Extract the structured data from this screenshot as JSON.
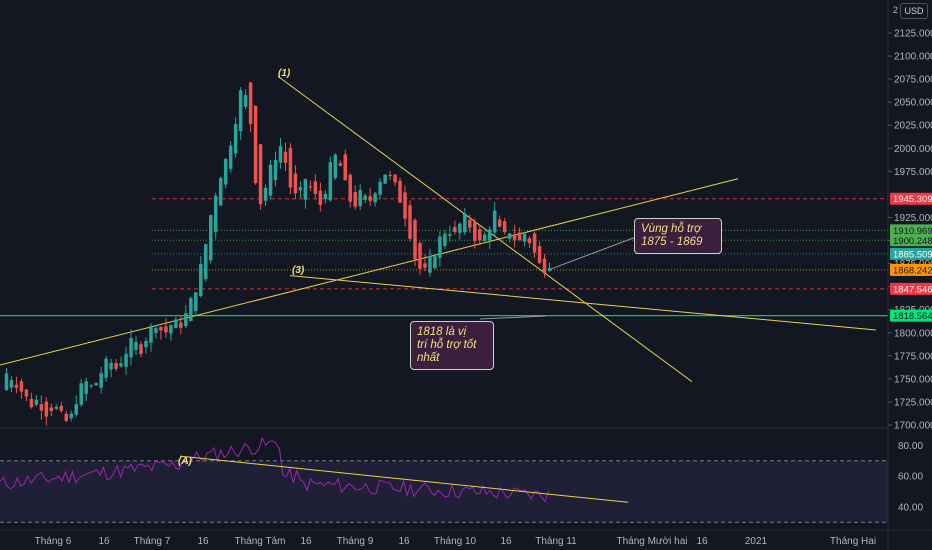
{
  "header": {
    "corner_label": "2",
    "currency": "USD"
  },
  "chart_data": {
    "type": "candlestick",
    "price_axis": {
      "ticks": [
        1700,
        1725,
        1750,
        1775,
        1800,
        1825,
        1850,
        1875,
        1900,
        1925,
        1975,
        2000,
        2025,
        2050,
        2075,
        2100,
        2125
      ],
      "tick_labels": [
        "1700.000",
        "1725.000",
        "1750.000",
        "1775.000",
        "1800.000",
        "1825.000",
        "1850.000",
        "1875.000",
        "1900.000",
        "1925.000",
        "1975.000",
        "2000.000",
        "2025.000",
        "2050.000",
        "2075.000",
        "2100.000",
        "2125.000"
      ],
      "range": [
        1693,
        2148
      ]
    },
    "time_axis": {
      "labels": [
        "Tháng 6",
        "16",
        "Tháng 7",
        "16",
        "Tháng Tám",
        "16",
        "Tháng 9",
        "16",
        "Tháng 10",
        "16",
        "Tháng 11",
        "Tháng Mười hai",
        "16",
        "2021",
        "Tháng Hai"
      ]
    },
    "levels": [
      {
        "price": 1945.309,
        "label": "1945.309",
        "color": "#f23645",
        "style": "dashed"
      },
      {
        "price": 1910.969,
        "label": "1910.969",
        "color": "#4caf50",
        "style": "dotted"
      },
      {
        "price": 1900.248,
        "label": "1900.248",
        "color": "#4caf50",
        "style": "dotted"
      },
      {
        "price": 1885.509,
        "label": "1885.509",
        "color": "#26a69a",
        "style": "dotted"
      },
      {
        "price": 1868.242,
        "label": "1868.242",
        "color": "#ff9800",
        "style": "dotted"
      },
      {
        "price": 1847.546,
        "label": "1847.546",
        "color": "#f23645",
        "style": "dashed"
      },
      {
        "price": 1818.564,
        "label": "1818.564",
        "color": "#00e676",
        "style": "solid"
      }
    ],
    "wave_labels": [
      "(1)",
      "(3)",
      "(A)"
    ],
    "annotations": [
      {
        "text": "Vùng hỗ trợ\n1875 - 1869"
      },
      {
        "text": "1818 là vị\ntrí hỗ trợ tốt\nnhất"
      }
    ],
    "candle_anchors": [
      [
        1738,
        1756
      ],
      [
        1742,
        1750
      ],
      [
        1748,
        1736
      ],
      [
        1730,
        1722
      ],
      [
        1720,
        1728
      ],
      [
        1726,
        1714
      ],
      [
        1716,
        1722
      ],
      [
        1721,
        1708
      ],
      [
        1706,
        1701
      ],
      [
        1712,
        1733
      ],
      [
        1732,
        1747
      ],
      [
        1745,
        1739
      ],
      [
        1740,
        1757
      ],
      [
        1757,
        1770
      ],
      [
        1768,
        1761
      ],
      [
        1760,
        1778
      ],
      [
        1776,
        1790
      ],
      [
        1788,
        1782
      ],
      [
        1783,
        1800
      ],
      [
        1800,
        1812
      ],
      [
        1810,
        1798
      ],
      [
        1798,
        1810
      ],
      [
        1812,
        1808
      ],
      [
        1806,
        1822
      ],
      [
        1822,
        1848
      ],
      [
        1848,
        1880
      ],
      [
        1880,
        1930
      ],
      [
        1930,
        1968
      ],
      [
        1966,
        1990
      ],
      [
        1990,
        2028
      ],
      [
        2028,
        2070
      ],
      [
        2072,
        2030
      ],
      [
        2032,
        1935
      ],
      [
        1935,
        1960
      ],
      [
        1960,
        1990
      ],
      [
        1990,
        2005
      ],
      [
        2004,
        1960
      ],
      [
        1960,
        1942
      ],
      [
        1944,
        1968
      ],
      [
        1968,
        1950
      ],
      [
        1952,
        1938
      ],
      [
        1938,
        1975
      ],
      [
        1976,
        1995
      ],
      [
        1995,
        1960
      ],
      [
        1960,
        1936
      ],
      [
        1936,
        1950
      ],
      [
        1950,
        1940
      ],
      [
        1940,
        1960
      ],
      [
        1960,
        1975
      ],
      [
        1975,
        1965
      ],
      [
        1965,
        1945
      ],
      [
        1945,
        1920
      ],
      [
        1920,
        1878
      ],
      [
        1878,
        1862
      ],
      [
        1862,
        1880
      ],
      [
        1880,
        1900
      ],
      [
        1900,
        1915
      ],
      [
        1915,
        1905
      ],
      [
        1904,
        1925
      ],
      [
        1925,
        1915
      ],
      [
        1915,
        1895
      ],
      [
        1895,
        1908
      ],
      [
        1908,
        1930
      ],
      [
        1930,
        1900
      ],
      [
        1900,
        1912
      ],
      [
        1912,
        1896
      ],
      [
        1896,
        1910
      ],
      [
        1910,
        1888
      ],
      [
        1888,
        1868
      ],
      [
        1867,
        1877
      ]
    ],
    "rsi": {
      "range": [
        25,
        90
      ],
      "ticks": [
        40,
        60,
        80
      ],
      "tick_labels": [
        "40.00",
        "60.00",
        "80.00"
      ],
      "bands": [
        70,
        30
      ]
    }
  }
}
